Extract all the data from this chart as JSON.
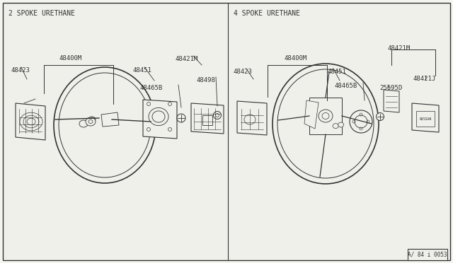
{
  "bg_color": "#f5f5f0",
  "panel_bg": "#f0f0eb",
  "line_color": "#333333",
  "fig_width": 6.4,
  "fig_height": 3.72,
  "dpi": 100,
  "title_left": "2 SPOKE URETHANE",
  "title_right": "4 SPOKE URETHANE",
  "footer_text": "A/ 84 i 0053"
}
